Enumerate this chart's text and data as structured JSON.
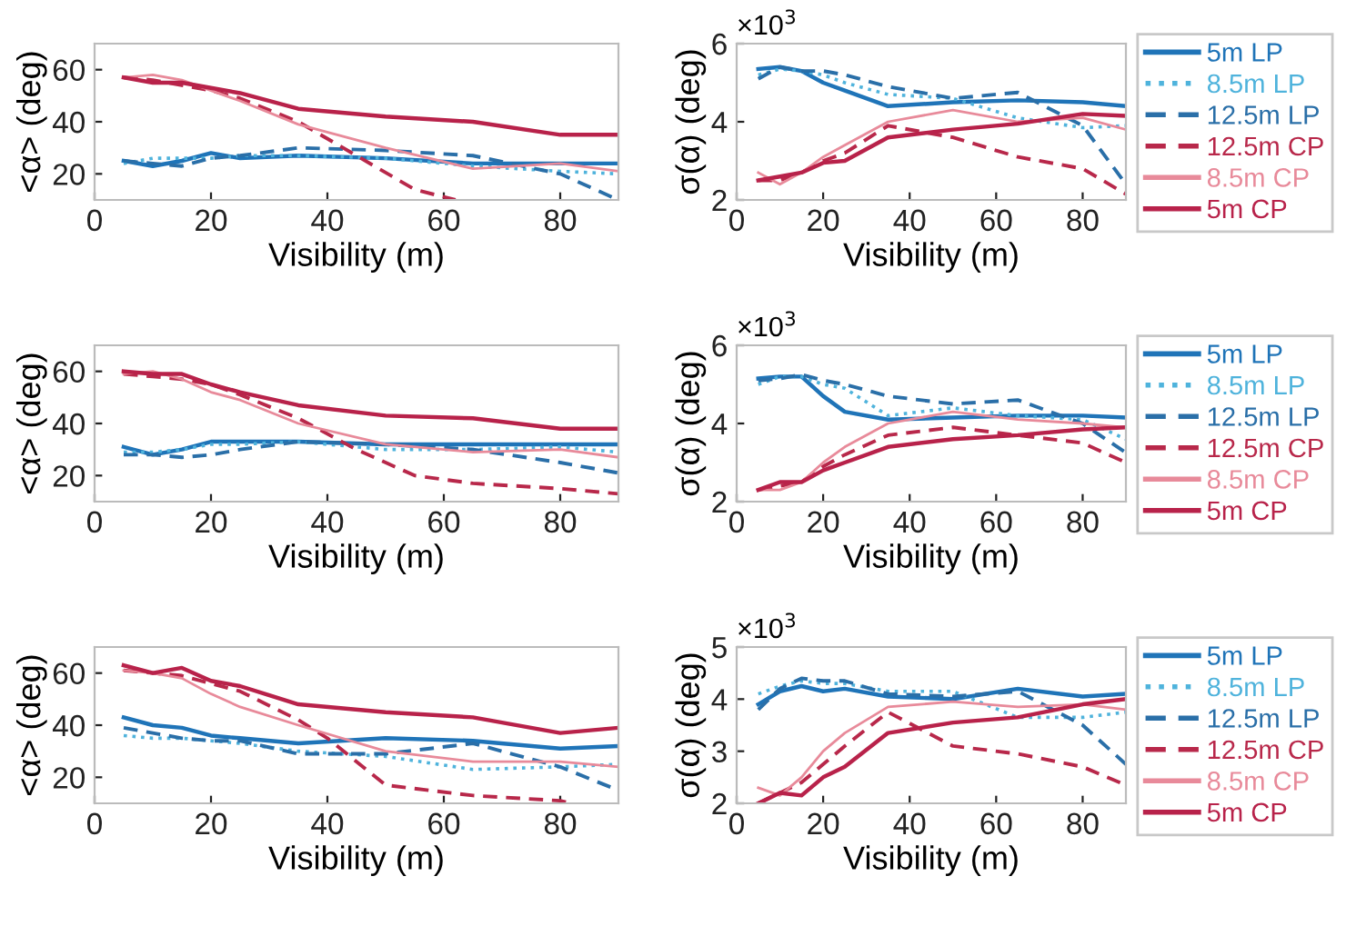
{
  "chart_data": [
    {
      "type": "line",
      "xlabel": "Visibility (m)",
      "ylabel": "<α> (deg)",
      "xlim": [
        0,
        90
      ],
      "ylim": [
        10,
        70
      ],
      "xticks": [
        0,
        20,
        40,
        60,
        80
      ],
      "yticks": [
        20,
        40,
        60
      ],
      "grid": false,
      "legend": false,
      "x": [
        5,
        10,
        15,
        20,
        25,
        35,
        50,
        65,
        80,
        90
      ],
      "series": [
        {
          "color": "#1f74b8",
          "line_style": "solid",
          "values": [
            25,
            23,
            25,
            28,
            26,
            27,
            26,
            24,
            24,
            24
          ]
        },
        {
          "color": "#4fb3dc",
          "line_style": "dotted",
          "values": [
            24,
            26,
            26,
            26,
            27,
            27,
            26,
            23,
            21,
            20
          ]
        },
        {
          "color": "#2a6fa8",
          "line_style": "dashed",
          "values": [
            25,
            24,
            23,
            26,
            27,
            30,
            29,
            27,
            20,
            10
          ]
        },
        {
          "color": "#b8284a",
          "line_style": "dashed",
          "x": [
            5,
            10,
            15,
            20,
            25,
            35,
            45,
            55,
            62
          ],
          "values": [
            57,
            56,
            54,
            52,
            49,
            40,
            27,
            14,
            10
          ]
        },
        {
          "color": "#e88a9a",
          "line_style": "solid",
          "values": [
            57,
            58,
            56,
            52,
            48,
            39,
            30,
            22,
            24,
            21
          ]
        },
        {
          "color": "#b8224a",
          "line_style": "solid",
          "values": [
            57,
            55,
            55,
            53,
            51,
            45,
            42,
            40,
            35,
            35
          ]
        }
      ]
    },
    {
      "type": "line",
      "xlabel": "Visibility (m)",
      "ylabel": "σ(α) (deg)",
      "annotations": [
        "×10$^{3}$"
      ],
      "xlim": [
        0,
        90
      ],
      "ylim": [
        2,
        6
      ],
      "xticks": [
        0,
        20,
        40,
        60,
        80
      ],
      "yticks": [
        2,
        4,
        6
      ],
      "grid": false,
      "legend": "right",
      "x": [
        5,
        10,
        15,
        20,
        25,
        35,
        50,
        65,
        80,
        90
      ],
      "series": [
        {
          "name": "5m LP",
          "color": "#1f74b8",
          "line_style": "solid",
          "values": [
            5.35,
            5.4,
            5.3,
            5.0,
            4.8,
            4.4,
            4.5,
            4.55,
            4.5,
            4.4
          ]
        },
        {
          "name": "8.5m LP",
          "color": "#4fb3dc",
          "line_style": "dotted",
          "values": [
            5.2,
            5.35,
            5.3,
            5.2,
            5.0,
            4.7,
            4.6,
            4.1,
            3.85,
            3.9
          ]
        },
        {
          "name": "12.5m LP",
          "color": "#2a6fa8",
          "line_style": "dashed",
          "values": [
            5.1,
            5.4,
            5.3,
            5.3,
            5.2,
            4.9,
            4.6,
            4.75,
            3.9,
            2.4
          ]
        },
        {
          "name": "12.5m CP",
          "color": "#b8284a",
          "line_style": "dashed",
          "values": [
            2.5,
            2.5,
            2.7,
            3.0,
            3.2,
            3.9,
            3.6,
            3.1,
            2.8,
            2.15
          ]
        },
        {
          "name": "8.5m CP",
          "color": "#e88a9a",
          "line_style": "solid",
          "values": [
            2.7,
            2.4,
            2.7,
            3.1,
            3.4,
            4.0,
            4.3,
            4.0,
            4.1,
            3.8
          ]
        },
        {
          "name": "5m CP",
          "color": "#b8224a",
          "line_style": "solid",
          "values": [
            2.5,
            2.6,
            2.7,
            2.95,
            3.0,
            3.6,
            3.8,
            3.95,
            4.2,
            4.15
          ]
        }
      ]
    },
    {
      "type": "line",
      "xlabel": "Visibility (m)",
      "ylabel": "<α> (deg)",
      "xlim": [
        0,
        90
      ],
      "ylim": [
        10,
        70
      ],
      "xticks": [
        0,
        20,
        40,
        60,
        80
      ],
      "yticks": [
        20,
        40,
        60
      ],
      "grid": false,
      "legend": false,
      "x": [
        5,
        10,
        15,
        20,
        25,
        35,
        50,
        65,
        80,
        90
      ],
      "series": [
        {
          "color": "#1f74b8",
          "line_style": "solid",
          "values": [
            31,
            28,
            30,
            33,
            33,
            33,
            32,
            32,
            32,
            32
          ]
        },
        {
          "color": "#4fb3dc",
          "line_style": "dotted",
          "values": [
            29,
            29,
            30,
            32,
            32,
            33,
            30,
            30,
            31,
            29
          ]
        },
        {
          "color": "#2a6fa8",
          "line_style": "dashed",
          "values": [
            28,
            28,
            27,
            28,
            30,
            33,
            32,
            30,
            25,
            21
          ]
        },
        {
          "color": "#b8284a",
          "line_style": "dashed",
          "x": [
            5,
            10,
            15,
            20,
            25,
            35,
            45,
            55,
            65,
            80,
            90
          ],
          "values": [
            59,
            58,
            57,
            55,
            51,
            42,
            30,
            20,
            17,
            15,
            13
          ]
        },
        {
          "color": "#e88a9a",
          "line_style": "solid",
          "values": [
            59,
            60,
            57,
            52,
            49,
            40,
            32,
            29,
            30,
            27
          ]
        },
        {
          "color": "#b8224a",
          "line_style": "solid",
          "values": [
            60,
            59,
            59,
            55,
            52,
            47,
            43,
            42,
            38,
            38
          ]
        }
      ]
    },
    {
      "type": "line",
      "xlabel": "Visibility (m)",
      "ylabel": "σ(α) (deg)",
      "annotations": [
        "×10$^{3}$"
      ],
      "xlim": [
        0,
        90
      ],
      "ylim": [
        2,
        6
      ],
      "xticks": [
        0,
        20,
        40,
        60,
        80
      ],
      "yticks": [
        2,
        4,
        6
      ],
      "grid": false,
      "legend": "right",
      "x": [
        5,
        10,
        15,
        20,
        25,
        35,
        50,
        65,
        80,
        90
      ],
      "series": [
        {
          "name": "5m LP",
          "color": "#1f74b8",
          "line_style": "solid",
          "values": [
            5.15,
            5.2,
            5.2,
            4.7,
            4.3,
            4.1,
            4.15,
            4.2,
            4.2,
            4.15
          ]
        },
        {
          "name": "8.5m LP",
          "color": "#4fb3dc",
          "line_style": "dotted",
          "values": [
            5.0,
            5.2,
            5.2,
            5.0,
            4.9,
            4.2,
            4.4,
            4.2,
            4.1,
            3.6
          ]
        },
        {
          "name": "12.5m LP",
          "color": "#2a6fa8",
          "line_style": "dashed",
          "values": [
            5.1,
            5.15,
            5.25,
            5.1,
            5.0,
            4.7,
            4.5,
            4.6,
            4.0,
            3.25
          ]
        },
        {
          "name": "12.5m CP",
          "color": "#b8284a",
          "line_style": "dashed",
          "values": [
            2.3,
            2.4,
            2.5,
            2.9,
            3.2,
            3.7,
            3.9,
            3.7,
            3.5,
            3.0
          ]
        },
        {
          "name": "8.5m CP",
          "color": "#e88a9a",
          "line_style": "solid",
          "values": [
            2.3,
            2.3,
            2.5,
            3.0,
            3.4,
            4.0,
            4.3,
            4.1,
            4.0,
            3.9
          ]
        },
        {
          "name": "5m CP",
          "color": "#b8224a",
          "line_style": "solid",
          "values": [
            2.3,
            2.5,
            2.5,
            2.8,
            3.0,
            3.4,
            3.6,
            3.7,
            3.85,
            3.9
          ]
        }
      ]
    },
    {
      "type": "line",
      "xlabel": "Visibility (m)",
      "ylabel": "<α> (deg)",
      "xlim": [
        0,
        90
      ],
      "ylim": [
        10,
        70
      ],
      "xticks": [
        0,
        20,
        40,
        60,
        80
      ],
      "yticks": [
        20,
        40,
        60
      ],
      "grid": false,
      "legend": false,
      "x": [
        5,
        10,
        15,
        20,
        25,
        35,
        50,
        65,
        80,
        90
      ],
      "series": [
        {
          "color": "#1f74b8",
          "line_style": "solid",
          "values": [
            43,
            40,
            39,
            36,
            35,
            33,
            35,
            34,
            31,
            32
          ]
        },
        {
          "color": "#4fb3dc",
          "line_style": "dotted",
          "values": [
            36,
            35,
            35,
            34,
            33,
            30,
            28,
            23,
            24,
            25
          ]
        },
        {
          "color": "#2a6fa8",
          "line_style": "dashed",
          "values": [
            39,
            37,
            35,
            34,
            34,
            29,
            29,
            33,
            24,
            15
          ]
        },
        {
          "color": "#b8284a",
          "line_style": "dashed",
          "x": [
            5,
            10,
            15,
            20,
            25,
            35,
            40,
            50,
            65,
            80,
            82
          ],
          "values": [
            61,
            60,
            59,
            56,
            53,
            42,
            35,
            17,
            13,
            11,
            10
          ]
        },
        {
          "color": "#e88a9a",
          "line_style": "solid",
          "values": [
            61,
            60,
            58,
            52,
            47,
            40,
            30,
            26,
            26,
            24
          ]
        },
        {
          "color": "#b8224a",
          "line_style": "solid",
          "values": [
            63,
            60,
            62,
            57,
            55,
            48,
            45,
            43,
            37,
            39
          ]
        }
      ]
    },
    {
      "type": "line",
      "xlabel": "Visibility (m)",
      "ylabel": "σ(α) (deg)",
      "annotations": [
        "×10$^{3}$"
      ],
      "xlim": [
        0,
        90
      ],
      "ylim": [
        2,
        5
      ],
      "xticks": [
        0,
        20,
        40,
        60,
        80
      ],
      "yticks": [
        2,
        3,
        4,
        5
      ],
      "grid": false,
      "legend": "right",
      "x": [
        5,
        10,
        15,
        20,
        25,
        35,
        50,
        65,
        80,
        90
      ],
      "series": [
        {
          "name": "5m LP",
          "color": "#1f74b8",
          "line_style": "solid",
          "values": [
            3.9,
            4.15,
            4.25,
            4.15,
            4.2,
            4.05,
            4.0,
            4.2,
            4.05,
            4.1
          ]
        },
        {
          "name": "8.5m LP",
          "color": "#4fb3dc",
          "line_style": "dotted",
          "values": [
            4.1,
            4.25,
            4.35,
            4.3,
            4.3,
            4.15,
            4.15,
            3.65,
            3.65,
            3.75
          ]
        },
        {
          "name": "12.5m LP",
          "color": "#2a6fa8",
          "line_style": "dashed",
          "values": [
            3.8,
            4.2,
            4.4,
            4.35,
            4.35,
            4.1,
            4.05,
            4.15,
            3.5,
            2.75
          ]
        },
        {
          "name": "12.5m CP",
          "color": "#b8284a",
          "line_style": "dashed",
          "values": [
            2.0,
            2.2,
            2.4,
            2.75,
            3.1,
            3.75,
            3.1,
            2.95,
            2.7,
            2.35
          ]
        },
        {
          "name": "8.5m CP",
          "color": "#e88a9a",
          "line_style": "solid",
          "values": [
            2.3,
            2.15,
            2.5,
            3.0,
            3.35,
            3.85,
            3.95,
            3.85,
            3.9,
            3.8
          ]
        },
        {
          "name": "5m CP",
          "color": "#b8224a",
          "line_style": "solid",
          "values": [
            2.0,
            2.2,
            2.15,
            2.5,
            2.7,
            3.35,
            3.55,
            3.65,
            3.9,
            4.0
          ]
        }
      ]
    }
  ]
}
